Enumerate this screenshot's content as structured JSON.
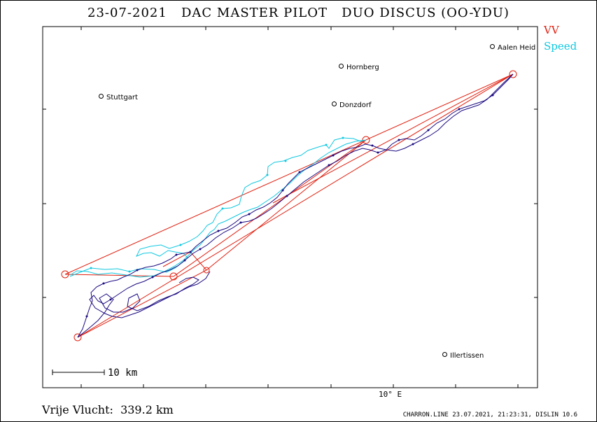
{
  "title": "23-07-2021   DAC MASTER PILOT   DUO DISCUS (OO-YDU)",
  "legend": {
    "vv": "VV",
    "speed": "Speed"
  },
  "colors": {
    "vv": "#e02010",
    "speed": "#10c8e0",
    "track": "#1a0a80",
    "frame": "#000000"
  },
  "places": {
    "aalen": "Aalen Heid",
    "hornberg": "Hornberg",
    "stuttgart": "Stuttgart",
    "donzdorf": "Donzdorf",
    "illertissen": "Illertissen"
  },
  "scale_label": "10 km",
  "x_axis_label": "10° E",
  "distance_text": "Vrije Vlucht:  339.2 km",
  "footer": "CHARRON.LINE 23.07.2021, 21:23:31, DISLIN 10.6"
}
